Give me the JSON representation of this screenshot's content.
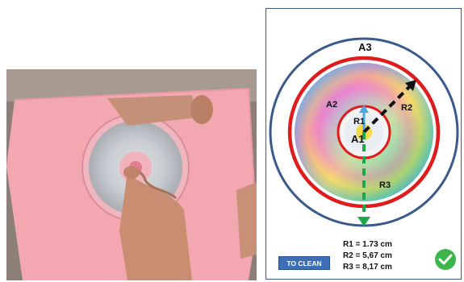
{
  "labels": {
    "a1": "A1",
    "a2": "A2",
    "a3": "A3",
    "r1": "R1",
    "r2": "R2",
    "r3": "R3"
  },
  "measurements": [
    "R1 = 1.73 cm",
    "R2 = 5,67 cm",
    "R3 = 8,17 cm"
  ],
  "buttons": {
    "to_clean": "TO CLEAN"
  },
  "icons": {
    "check": "check-icon"
  },
  "colors": {
    "outer_ring": "#3a5a8c",
    "red_ring": "#e01b1b",
    "green_arrow": "#1fa84a",
    "button": "#3d6fb6",
    "check": "#3cb54a",
    "paper": "#f4a8b2"
  }
}
